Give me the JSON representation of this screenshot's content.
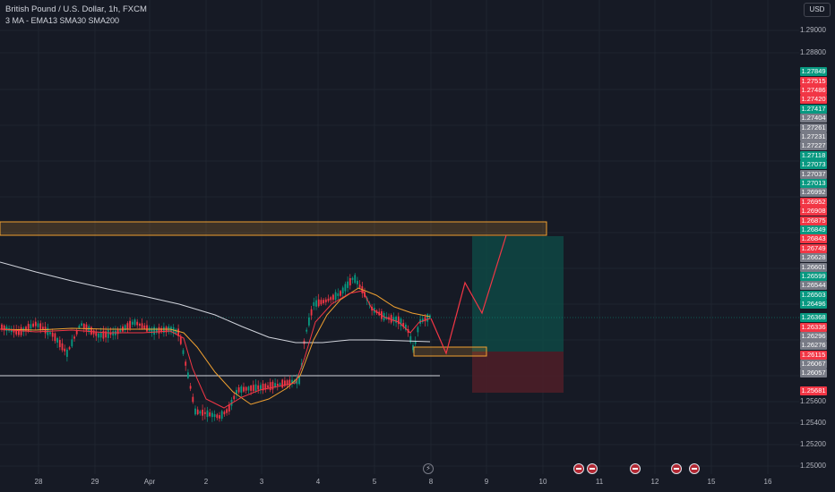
{
  "header": {
    "title": "British Pound / U.S. Dollar, 1h, FXCM",
    "indicator": "3 MA - EMA13 SMA30 SMA200"
  },
  "axis": {
    "currency": "USD",
    "price_levels": [
      "1.29000",
      "1.28800",
      "1.25600",
      "1.25400",
      "1.25200",
      "1.25000"
    ],
    "price_tags": [
      {
        "label": "1.27849",
        "color": "#089981"
      },
      {
        "label": "1.27515",
        "color": "#f23645"
      },
      {
        "label": "1.27486",
        "color": "#f23645"
      },
      {
        "label": "1.27420",
        "color": "#f23645"
      },
      {
        "label": "1.27417",
        "color": "#089981"
      },
      {
        "label": "1.27404",
        "color": "#787b86"
      },
      {
        "label": "1.27261",
        "color": "#787b86"
      },
      {
        "label": "1.27231",
        "color": "#787b86"
      },
      {
        "label": "1.27227",
        "color": "#787b86"
      },
      {
        "label": "1.27118",
        "color": "#089981"
      },
      {
        "label": "1.27073",
        "color": "#089981"
      },
      {
        "label": "1.27037",
        "color": "#787b86"
      },
      {
        "label": "1.27013",
        "color": "#089981"
      },
      {
        "label": "1.26992",
        "color": "#787b86"
      },
      {
        "label": "1.26952",
        "color": "#f23645"
      },
      {
        "label": "1.26908",
        "color": "#f23645"
      },
      {
        "label": "1.26875",
        "color": "#f23645"
      },
      {
        "label": "1.26849",
        "color": "#089981"
      },
      {
        "label": "1.26843",
        "color": "#f23645"
      },
      {
        "label": "1.26749",
        "color": "#f23645"
      },
      {
        "label": "1.26628",
        "color": "#787b86"
      },
      {
        "label": "1.26601",
        "color": "#787b86"
      },
      {
        "label": "1.26599",
        "color": "#089981"
      },
      {
        "label": "1.26544",
        "color": "#787b86"
      },
      {
        "label": "1.26503",
        "color": "#089981"
      },
      {
        "label": "1.26496",
        "color": "#089981"
      },
      {
        "label": "1.26368",
        "color": "#089981"
      },
      {
        "label": "1.26336",
        "color": "#f23645"
      },
      {
        "label": "1.26296",
        "color": "#787b86"
      },
      {
        "label": "1.26276",
        "color": "#787b86"
      },
      {
        "label": "1.26115",
        "color": "#f23645"
      },
      {
        "label": "1.26067",
        "color": "#787b86"
      },
      {
        "label": "1.26057",
        "color": "#787b86"
      },
      {
        "label": "1.25681",
        "color": "#f23645"
      }
    ],
    "time_labels": [
      "28",
      "29",
      "Apr",
      "2",
      "3",
      "4",
      "5",
      "8",
      "9",
      "10",
      "11",
      "12",
      "15",
      "16"
    ]
  },
  "colors": {
    "background": "#161a25",
    "up": "#089981",
    "down": "#f23645",
    "ema13": "#f23645",
    "sma30": "#f0a030",
    "sma200": "#d1d4dc",
    "zone": "#f0a030",
    "profit": "#0e4e48",
    "loss": "#4f1f28",
    "projection": "#f23645"
  },
  "events": [
    "gb-event-icon",
    "gb-event-icon",
    "gb-event-icon",
    "gb-event-icon",
    "gb-event-icon",
    "gb-event-icon"
  ]
}
